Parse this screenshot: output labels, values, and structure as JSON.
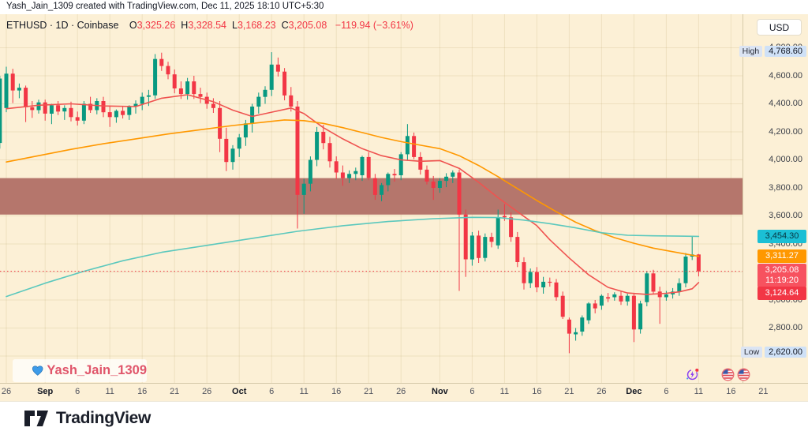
{
  "header": {
    "attribution": "Yash_Jain_1309 created with TradingView.com, Dec 11, 2025 18:10 UTC+5:30"
  },
  "legend": {
    "title": "ETHUSD · 1D · Coinbase",
    "o_label": "O",
    "o": "3,325.26",
    "h_label": "H",
    "h": "3,328.54",
    "l_label": "L",
    "l": "3,168.23",
    "c_label": "C",
    "c": "3,205.08",
    "change": "−119.94 (−3.61%)"
  },
  "price_scale": {
    "currency_button": "USD",
    "ticks": [
      {
        "t": "4,800.00",
        "v": 4800
      },
      {
        "t": "4,600.00",
        "v": 4600
      },
      {
        "t": "4,400.00",
        "v": 4400
      },
      {
        "t": "4,200.00",
        "v": 4200
      },
      {
        "t": "4,000.00",
        "v": 4000
      },
      {
        "t": "3,800.00",
        "v": 3800
      },
      {
        "t": "3,600.00",
        "v": 3600
      },
      {
        "t": "3,400.00",
        "v": 3400
      },
      {
        "t": "3,000.00",
        "v": 3000
      },
      {
        "t": "2,800.00",
        "v": 2800
      }
    ],
    "high_label": {
      "text": "High",
      "value": "4,768.60",
      "price": 4768.6
    },
    "low_label": {
      "text": "Low",
      "value": "2,620.00",
      "price": 2620
    },
    "labels": [
      {
        "text": "3,454.30",
        "price": 3454.3,
        "bg": "#1bbfd5",
        "fg": "#073642",
        "lines": 1,
        "name": "slow-ma-price-label"
      },
      {
        "text": "3,311.27",
        "price": 3311.27,
        "bg": "#ff9800",
        "fg": "#ffffff",
        "lines": 1,
        "name": "mid-ma-price-label"
      },
      {
        "text": "3,205.08",
        "price": 3205.08,
        "bg": "#f7525f",
        "fg": "#ffffff",
        "lines": 2,
        "countdown": "11:19:20",
        "name": "last-price-label"
      },
      {
        "text": "3,124.64",
        "price": 3124.64,
        "bg": "#f23645",
        "fg": "#ffffff",
        "lines": 1,
        "name": "fast-ma-price-label"
      }
    ]
  },
  "watermark": {
    "name": "Yash_Jain_1309",
    "heart_color": "#3d9be9"
  },
  "footer": {
    "brand": "TradingView"
  },
  "colors": {
    "background": "#fcf0d6",
    "grid": "rgba(171,140,76,0.16)",
    "up": "#089981",
    "down": "#f23645",
    "supply_zone": "#b5766c",
    "last_price_line": "#f23645"
  },
  "chart_data": {
    "type": "candlestick",
    "title": "ETHUSD 1D Coinbase",
    "symbol": "ETHUSD",
    "interval": "1D",
    "exchange": "Coinbase",
    "last_bar": {
      "open": 3325.26,
      "high": 3328.54,
      "low": 3168.23,
      "close": 3205.08,
      "change": -119.94,
      "change_pct": -3.61
    },
    "period_high": 4768.6,
    "period_low": 2620.0,
    "last_price": 3205.08,
    "ylim": [
      2560,
      4830
    ],
    "y_grid_step": 200,
    "supply_zone": {
      "top": 3870,
      "bottom": 3610
    },
    "x_ticks": [
      {
        "l": "26",
        "d": 0
      },
      {
        "l": "Sep",
        "d": 6,
        "m": 1
      },
      {
        "l": "6",
        "d": 11
      },
      {
        "l": "11",
        "d": 16
      },
      {
        "l": "16",
        "d": 21
      },
      {
        "l": "21",
        "d": 26
      },
      {
        "l": "26",
        "d": 31
      },
      {
        "l": "Oct",
        "d": 36,
        "m": 1
      },
      {
        "l": "6",
        "d": 41
      },
      {
        "l": "11",
        "d": 46
      },
      {
        "l": "16",
        "d": 51
      },
      {
        "l": "21",
        "d": 56
      },
      {
        "l": "26",
        "d": 61
      },
      {
        "l": "Nov",
        "d": 67,
        "m": 1
      },
      {
        "l": "6",
        "d": 72
      },
      {
        "l": "11",
        "d": 77
      },
      {
        "l": "16",
        "d": 82
      },
      {
        "l": "21",
        "d": 87
      },
      {
        "l": "26",
        "d": 92
      },
      {
        "l": "Dec",
        "d": 97,
        "m": 1
      },
      {
        "l": "6",
        "d": 102
      },
      {
        "l": "11",
        "d": 107
      },
      {
        "l": "16",
        "d": 112
      },
      {
        "l": "21",
        "d": 117
      }
    ],
    "event_markers": [
      {
        "icon": "auto-refresh",
        "day": 106
      },
      {
        "icon": "us-flag",
        "day": 111.5
      },
      {
        "icon": "us-flag",
        "day": 114
      }
    ],
    "candles": [
      [
        "08-25",
        4120,
        4600,
        4080,
        4580
      ],
      [
        "08-26",
        4370,
        4665,
        4340,
        4615
      ],
      [
        "08-27",
        4615,
        4650,
        4405,
        4495
      ],
      [
        "08-28",
        4495,
        4545,
        4440,
        4515
      ],
      [
        "08-29",
        4515,
        4530,
        4270,
        4375
      ],
      [
        "08-30",
        4375,
        4420,
        4300,
        4355
      ],
      [
        "08-31",
        4355,
        4430,
        4330,
        4410
      ],
      [
        "09-01",
        4410,
        4430,
        4280,
        4330
      ],
      [
        "09-02",
        4330,
        4400,
        4255,
        4390
      ],
      [
        "09-03",
        4390,
        4420,
        4320,
        4345
      ],
      [
        "09-04",
        4345,
        4390,
        4285,
        4370
      ],
      [
        "09-05",
        4370,
        4415,
        4275,
        4305
      ],
      [
        "09-06",
        4305,
        4345,
        4245,
        4280
      ],
      [
        "09-07",
        4280,
        4420,
        4255,
        4400
      ],
      [
        "09-08",
        4400,
        4450,
        4335,
        4355
      ],
      [
        "09-09",
        4355,
        4440,
        4325,
        4420
      ],
      [
        "09-10",
        4420,
        4450,
        4305,
        4340
      ],
      [
        "09-11",
        4340,
        4380,
        4235,
        4305
      ],
      [
        "09-12",
        4305,
        4360,
        4265,
        4350
      ],
      [
        "09-13",
        4350,
        4385,
        4295,
        4320
      ],
      [
        "09-14",
        4320,
        4390,
        4285,
        4380
      ],
      [
        "09-15",
        4380,
        4425,
        4330,
        4400
      ],
      [
        "09-16",
        4400,
        4480,
        4355,
        4450
      ],
      [
        "09-17",
        4450,
        4500,
        4385,
        4460
      ],
      [
        "09-18",
        4460,
        4755,
        4435,
        4720
      ],
      [
        "09-19",
        4720,
        4765,
        4635,
        4670
      ],
      [
        "09-20",
        4670,
        4700,
        4575,
        4610
      ],
      [
        "09-21",
        4610,
        4645,
        4475,
        4510
      ],
      [
        "09-22",
        4510,
        4560,
        4435,
        4470
      ],
      [
        "09-23",
        4470,
        4585,
        4430,
        4560
      ],
      [
        "09-24",
        4560,
        4600,
        4435,
        4470
      ],
      [
        "09-25",
        4470,
        4515,
        4405,
        4450
      ],
      [
        "09-26",
        4450,
        4480,
        4365,
        4400
      ],
      [
        "09-27",
        4400,
        4440,
        4335,
        4370
      ],
      [
        "09-28",
        4370,
        4420,
        4055,
        4150
      ],
      [
        "09-29",
        4150,
        4230,
        3920,
        3985
      ],
      [
        "09-30",
        3985,
        4105,
        3930,
        4080
      ],
      [
        "10-01",
        4080,
        4185,
        4020,
        4160
      ],
      [
        "10-02",
        4160,
        4285,
        4100,
        4260
      ],
      [
        "10-03",
        4260,
        4400,
        4195,
        4380
      ],
      [
        "10-04",
        4380,
        4480,
        4330,
        4450
      ],
      [
        "10-05",
        4450,
        4525,
        4400,
        4500
      ],
      [
        "10-06",
        4500,
        4768.6,
        4455,
        4680
      ],
      [
        "10-07",
        4680,
        4730,
        4595,
        4630
      ],
      [
        "10-08",
        4630,
        4655,
        4425,
        4460
      ],
      [
        "10-09",
        4460,
        4520,
        4345,
        4380
      ],
      [
        "10-10",
        4380,
        4420,
        3510,
        3750
      ],
      [
        "10-11",
        3750,
        3865,
        3615,
        3830
      ],
      [
        "10-12",
        3830,
        4025,
        3775,
        4000
      ],
      [
        "10-13",
        4000,
        4235,
        3955,
        4200
      ],
      [
        "10-14",
        4200,
        4250,
        4075,
        4120
      ],
      [
        "10-15",
        4120,
        4165,
        3945,
        3990
      ],
      [
        "10-16",
        3990,
        4025,
        3865,
        3910
      ],
      [
        "10-17",
        3910,
        3960,
        3815,
        3870
      ],
      [
        "10-18",
        3870,
        3925,
        3835,
        3900
      ],
      [
        "10-19",
        3900,
        3945,
        3855,
        3920
      ],
      [
        "10-20",
        3890,
        4030,
        3850,
        4020
      ],
      [
        "10-21",
        4020,
        4055,
        3855,
        3870
      ],
      [
        "10-22",
        3870,
        3900,
        3715,
        3750
      ],
      [
        "10-23",
        3750,
        3835,
        3705,
        3820
      ],
      [
        "10-24",
        3820,
        3910,
        3775,
        3900
      ],
      [
        "10-25",
        3900,
        3935,
        3845,
        3890
      ],
      [
        "10-26",
        3890,
        4055,
        3855,
        4040
      ],
      [
        "10-27",
        4040,
        4255,
        4000,
        4170
      ],
      [
        "10-28",
        4170,
        4195,
        4005,
        4020
      ],
      [
        "10-29",
        4020,
        4055,
        3895,
        3930
      ],
      [
        "10-30",
        3930,
        3960,
        3825,
        3845
      ],
      [
        "10-31",
        3845,
        3885,
        3715,
        3800
      ],
      [
        "11-01",
        3800,
        3870,
        3765,
        3850
      ],
      [
        "11-02",
        3850,
        3905,
        3805,
        3880
      ],
      [
        "11-03",
        3880,
        3925,
        3835,
        3910
      ],
      [
        "11-04",
        3910,
        3930,
        3065,
        3610
      ],
      [
        "11-05",
        3610,
        3645,
        3165,
        3290
      ],
      [
        "11-06",
        3290,
        3485,
        3245,
        3460
      ],
      [
        "11-07",
        3460,
        3495,
        3265,
        3300
      ],
      [
        "11-08",
        3300,
        3475,
        3275,
        3450
      ],
      [
        "11-09",
        3450,
        3480,
        3375,
        3415
      ],
      [
        "11-10",
        3390,
        3645,
        3365,
        3590
      ],
      [
        "11-11",
        3600,
        3685,
        3565,
        3590
      ],
      [
        "11-12",
        3590,
        3625,
        3415,
        3450
      ],
      [
        "11-13",
        3450,
        3485,
        3235,
        3270
      ],
      [
        "11-14",
        3270,
        3305,
        3075,
        3120
      ],
      [
        "11-15",
        3120,
        3225,
        3085,
        3200
      ],
      [
        "11-16",
        3200,
        3235,
        3055,
        3090
      ],
      [
        "11-17",
        3090,
        3165,
        3045,
        3130
      ],
      [
        "11-18",
        3130,
        3160,
        3095,
        3125
      ],
      [
        "11-19",
        3125,
        3150,
        2995,
        3020
      ],
      [
        "11-20",
        3030,
        3060,
        2865,
        2880
      ],
      [
        "11-21",
        2860,
        2875,
        2620,
        2760
      ],
      [
        "11-22",
        2755,
        2800,
        2710,
        2770
      ],
      [
        "11-23",
        2775,
        2890,
        2745,
        2875
      ],
      [
        "11-24",
        2855,
        2985,
        2830,
        2975
      ],
      [
        "11-25",
        2975,
        3000,
        2905,
        2940
      ],
      [
        "11-26",
        2960,
        3040,
        2930,
        3030
      ],
      [
        "11-27",
        3020,
        3050,
        2985,
        3010
      ],
      [
        "11-28",
        3020,
        3055,
        2995,
        3040
      ],
      [
        "11-29",
        3030,
        3060,
        2965,
        2990
      ],
      [
        "11-30",
        2990,
        3045,
        2960,
        3030
      ],
      [
        "12-01",
        3030,
        3050,
        2700,
        2790
      ],
      [
        "12-02",
        2790,
        2995,
        2760,
        2975
      ],
      [
        "12-03",
        2985,
        3205,
        2955,
        3190
      ],
      [
        "12-04",
        3190,
        3215,
        3040,
        3060
      ],
      [
        "12-05",
        3060,
        3095,
        2830,
        3020
      ],
      [
        "12-06",
        3020,
        3065,
        2995,
        3040
      ],
      [
        "12-07",
        3040,
        3085,
        3010,
        3060
      ],
      [
        "12-08",
        3060,
        3155,
        3030,
        3120
      ],
      [
        "12-09",
        3120,
        3335,
        3090,
        3310
      ],
      [
        "12-10",
        3310,
        3455,
        3285,
        3325
      ],
      [
        "12-11",
        3325.26,
        3328.54,
        3168.23,
        3205.08
      ]
    ],
    "moving_averages": [
      {
        "name": "fast-ma",
        "color": "#ef5350",
        "last": 3124.64,
        "points": [
          [
            0,
            4365
          ],
          [
            5,
            4390
          ],
          [
            10,
            4400
          ],
          [
            15,
            4385
          ],
          [
            20,
            4380
          ],
          [
            24,
            4440
          ],
          [
            28,
            4465
          ],
          [
            32,
            4415
          ],
          [
            35,
            4355
          ],
          [
            38,
            4310
          ],
          [
            41,
            4340
          ],
          [
            44,
            4370
          ],
          [
            46,
            4330
          ],
          [
            49,
            4230
          ],
          [
            52,
            4150
          ],
          [
            55,
            4080
          ],
          [
            58,
            4030
          ],
          [
            61,
            4000
          ],
          [
            64,
            3990
          ],
          [
            67,
            3995
          ],
          [
            70,
            3940
          ],
          [
            73,
            3840
          ],
          [
            76,
            3730
          ],
          [
            79,
            3630
          ],
          [
            82,
            3530
          ],
          [
            84,
            3430
          ],
          [
            87,
            3300
          ],
          [
            90,
            3180
          ],
          [
            93,
            3090
          ],
          [
            96,
            3050
          ],
          [
            99,
            3040
          ],
          [
            102,
            3048
          ],
          [
            104,
            3058
          ],
          [
            106,
            3080
          ],
          [
            107,
            3124.6
          ]
        ]
      },
      {
        "name": "mid-ma",
        "color": "#ff9800",
        "last": 3311.27,
        "points": [
          [
            0,
            3985
          ],
          [
            5,
            4030
          ],
          [
            10,
            4075
          ],
          [
            15,
            4115
          ],
          [
            20,
            4150
          ],
          [
            25,
            4185
          ],
          [
            30,
            4215
          ],
          [
            35,
            4245
          ],
          [
            40,
            4270
          ],
          [
            43,
            4285
          ],
          [
            46,
            4280
          ],
          [
            49,
            4260
          ],
          [
            52,
            4230
          ],
          [
            55,
            4195
          ],
          [
            58,
            4160
          ],
          [
            61,
            4130
          ],
          [
            64,
            4105
          ],
          [
            67,
            4080
          ],
          [
            70,
            4030
          ],
          [
            73,
            3960
          ],
          [
            76,
            3880
          ],
          [
            79,
            3795
          ],
          [
            82,
            3710
          ],
          [
            85,
            3630
          ],
          [
            88,
            3555
          ],
          [
            91,
            3495
          ],
          [
            94,
            3445
          ],
          [
            97,
            3405
          ],
          [
            100,
            3370
          ],
          [
            103,
            3345
          ],
          [
            105,
            3328
          ],
          [
            107,
            3311.3
          ]
        ]
      },
      {
        "name": "slow-ma",
        "color": "#5bc8bd",
        "last": 3454.3,
        "points": [
          [
            0,
            3025
          ],
          [
            6,
            3120
          ],
          [
            12,
            3205
          ],
          [
            18,
            3280
          ],
          [
            24,
            3340
          ],
          [
            31,
            3390
          ],
          [
            38,
            3440
          ],
          [
            45,
            3490
          ],
          [
            52,
            3530
          ],
          [
            59,
            3560
          ],
          [
            66,
            3580
          ],
          [
            72,
            3590
          ],
          [
            76,
            3588
          ],
          [
            80,
            3570
          ],
          [
            84,
            3545
          ],
          [
            88,
            3515
          ],
          [
            92,
            3480
          ],
          [
            96,
            3462
          ],
          [
            100,
            3458
          ],
          [
            104,
            3456
          ],
          [
            107,
            3454.3
          ]
        ]
      }
    ]
  }
}
